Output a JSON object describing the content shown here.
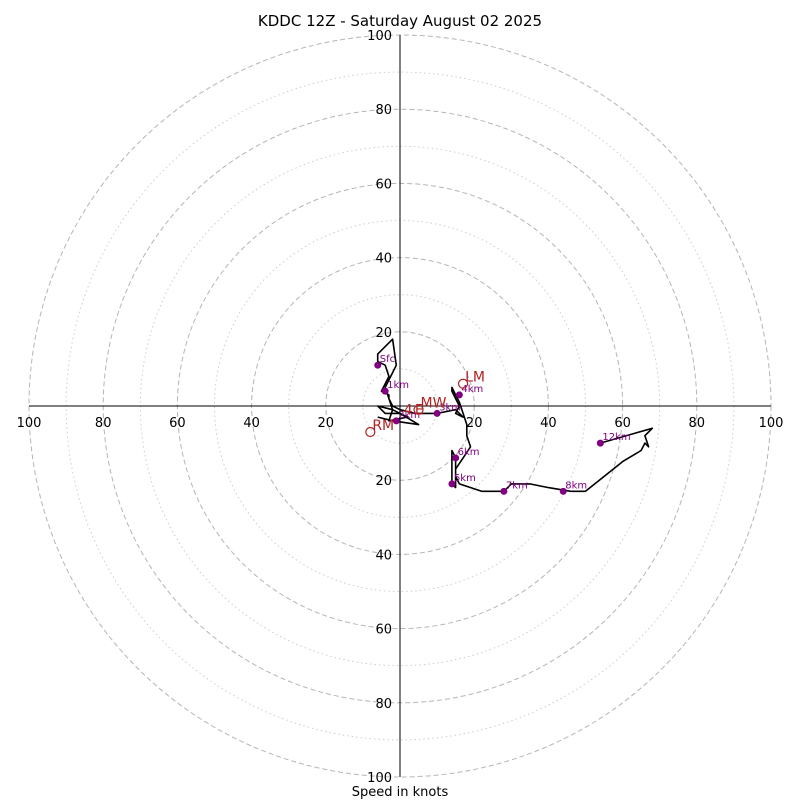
{
  "chart_data": {
    "type": "hodograph",
    "title": "KDDC 12Z - Saturday August 02 2025",
    "xlabel": "Speed in knots",
    "axis_range": [
      -100,
      100
    ],
    "major_rings": [
      20,
      40,
      60,
      80,
      100
    ],
    "minor_rings": [
      10,
      30,
      50,
      70,
      90
    ],
    "tick_labels": [
      "100",
      "80",
      "60",
      "40",
      "20",
      "20",
      "40",
      "60",
      "80",
      "100"
    ],
    "y_tick_labels": [
      "100",
      "80",
      "60",
      "40",
      "20",
      "20",
      "40",
      "60",
      "80",
      "100"
    ],
    "line_color": "#000000",
    "marker_color": "#800080",
    "motion_color": "#b22222",
    "trace": [
      [
        -6,
        -3
      ],
      [
        -2,
        -4
      ],
      [
        5,
        -5
      ],
      [
        0,
        -2
      ],
      [
        -4,
        -2
      ],
      [
        -6,
        0
      ],
      [
        -2,
        -1
      ],
      [
        2,
        -3
      ],
      [
        -3,
        -4
      ],
      [
        -2,
        -1
      ],
      [
        -4,
        5
      ],
      [
        -3,
        7
      ],
      [
        -1,
        11
      ],
      [
        -2,
        18
      ],
      [
        -6,
        14
      ],
      [
        -6,
        12
      ],
      [
        -4,
        11
      ],
      [
        -3,
        8
      ],
      [
        -4,
        6
      ],
      [
        -5,
        4
      ],
      [
        -3,
        3
      ],
      [
        -3,
        2
      ],
      [
        -2,
        0
      ],
      [
        0,
        -1
      ],
      [
        4,
        -2
      ],
      [
        10,
        -2
      ],
      [
        15,
        -1
      ],
      [
        17,
        -3
      ],
      [
        15,
        -2
      ],
      [
        16,
        0
      ],
      [
        15,
        2
      ],
      [
        14,
        4
      ],
      [
        14,
        5
      ],
      [
        15,
        3
      ],
      [
        16,
        1
      ],
      [
        17,
        -2
      ],
      [
        18,
        -5
      ],
      [
        18,
        -8
      ],
      [
        19,
        -11
      ],
      [
        17,
        -14
      ],
      [
        15,
        -17
      ],
      [
        15,
        -20
      ],
      [
        15,
        -22
      ],
      [
        14,
        -21
      ],
      [
        14,
        -18
      ],
      [
        14,
        -15
      ],
      [
        14,
        -12
      ],
      [
        15,
        -14
      ],
      [
        15,
        -19
      ],
      [
        16,
        -21
      ],
      [
        22,
        -23
      ],
      [
        28,
        -23
      ],
      [
        30,
        -21
      ],
      [
        35,
        -21
      ],
      [
        40,
        -22
      ],
      [
        46,
        -23
      ],
      [
        50,
        -23
      ],
      [
        55,
        -19
      ],
      [
        60,
        -15
      ],
      [
        65,
        -12
      ],
      [
        66,
        -10
      ],
      [
        67,
        -11
      ],
      [
        66,
        -8
      ],
      [
        68,
        -6
      ],
      [
        54,
        -10
      ]
    ],
    "height_markers": [
      {
        "label": "Sfc",
        "u": -6,
        "v": 11
      },
      {
        "label": "1km",
        "u": -4,
        "v": 4
      },
      {
        "label": "2km",
        "u": -1,
        "v": -4
      },
      {
        "label": "3km",
        "u": 10,
        "v": -2
      },
      {
        "label": "4km",
        "u": 16,
        "v": 3
      },
      {
        "label": "5km",
        "u": 14,
        "v": -21
      },
      {
        "label": "6km",
        "u": 15,
        "v": -14
      },
      {
        "label": "7km",
        "u": 28,
        "v": -23
      },
      {
        "label": "8km",
        "u": 44,
        "v": -23
      },
      {
        "label": "12km",
        "u": 54,
        "v": -10
      }
    ],
    "storm_motions": [
      {
        "label": "LM",
        "u": 17,
        "v": 6
      },
      {
        "label": "MW",
        "u": 5,
        "v": -1
      },
      {
        "label": "RM",
        "u": -8,
        "v": -7
      }
    ],
    "extra_labels": [
      {
        "label": "E",
        "u": 4,
        "v": -1
      },
      {
        "label": "4",
        "u": 1,
        "v": -1
      }
    ]
  }
}
